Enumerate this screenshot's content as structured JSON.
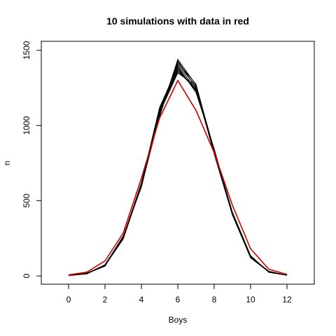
{
  "chart_data": {
    "type": "line",
    "title": "10 simulations with data in red",
    "xlabel": "Boys",
    "ylabel": "n",
    "xlim": [
      -1.5,
      13.5
    ],
    "ylim": [
      -55,
      1560
    ],
    "x_ticks": [
      0,
      2,
      4,
      6,
      8,
      10,
      12
    ],
    "y_ticks": [
      0,
      500,
      1000,
      1500
    ],
    "grid": false,
    "legend": "none",
    "x": [
      0,
      1,
      2,
      3,
      4,
      5,
      6,
      7,
      8,
      9,
      10,
      11,
      12
    ],
    "series": [
      {
        "color": "#000000",
        "values": [
          3,
          15,
          75,
          260,
          600,
          1060,
          1440,
          1270,
          820,
          420,
          130,
          25,
          5
        ]
      },
      {
        "color": "#000000",
        "values": [
          3,
          18,
          70,
          250,
          610,
          1090,
          1410,
          1260,
          830,
          410,
          125,
          28,
          6
        ]
      },
      {
        "color": "#000000",
        "values": [
          4,
          16,
          65,
          255,
          620,
          1110,
          1400,
          1240,
          840,
          415,
          128,
          30,
          5
        ]
      },
      {
        "color": "#000000",
        "values": [
          2,
          14,
          72,
          265,
          590,
          1080,
          1430,
          1250,
          810,
          405,
          120,
          27,
          4
        ]
      },
      {
        "color": "#000000",
        "values": [
          3,
          17,
          68,
          245,
          605,
          1100,
          1380,
          1230,
          835,
          425,
          135,
          26,
          6
        ]
      },
      {
        "color": "#000000",
        "values": [
          4,
          15,
          66,
          258,
          615,
          1120,
          1390,
          1220,
          845,
          418,
          122,
          29,
          5
        ]
      },
      {
        "color": "#000000",
        "values": [
          3,
          16,
          74,
          248,
          598,
          1070,
          1420,
          1275,
          825,
          412,
          132,
          24,
          4
        ]
      },
      {
        "color": "#000000",
        "values": [
          2,
          19,
          69,
          262,
          612,
          1095,
          1360,
          1245,
          815,
          408,
          127,
          31,
          5
        ]
      },
      {
        "color": "#000000",
        "values": [
          3,
          14,
          71,
          252,
          603,
          1085,
          1350,
          1265,
          838,
          416,
          124,
          28,
          6
        ]
      },
      {
        "color": "#000000",
        "values": [
          4,
          17,
          67,
          256,
          608,
          1105,
          1370,
          1235,
          828,
          422,
          129,
          25,
          5
        ]
      },
      {
        "color": "#cc0000",
        "values": [
          7,
          25,
          100,
          285,
          650,
          1050,
          1300,
          1100,
          820,
          470,
          180,
          45,
          10
        ]
      }
    ]
  }
}
